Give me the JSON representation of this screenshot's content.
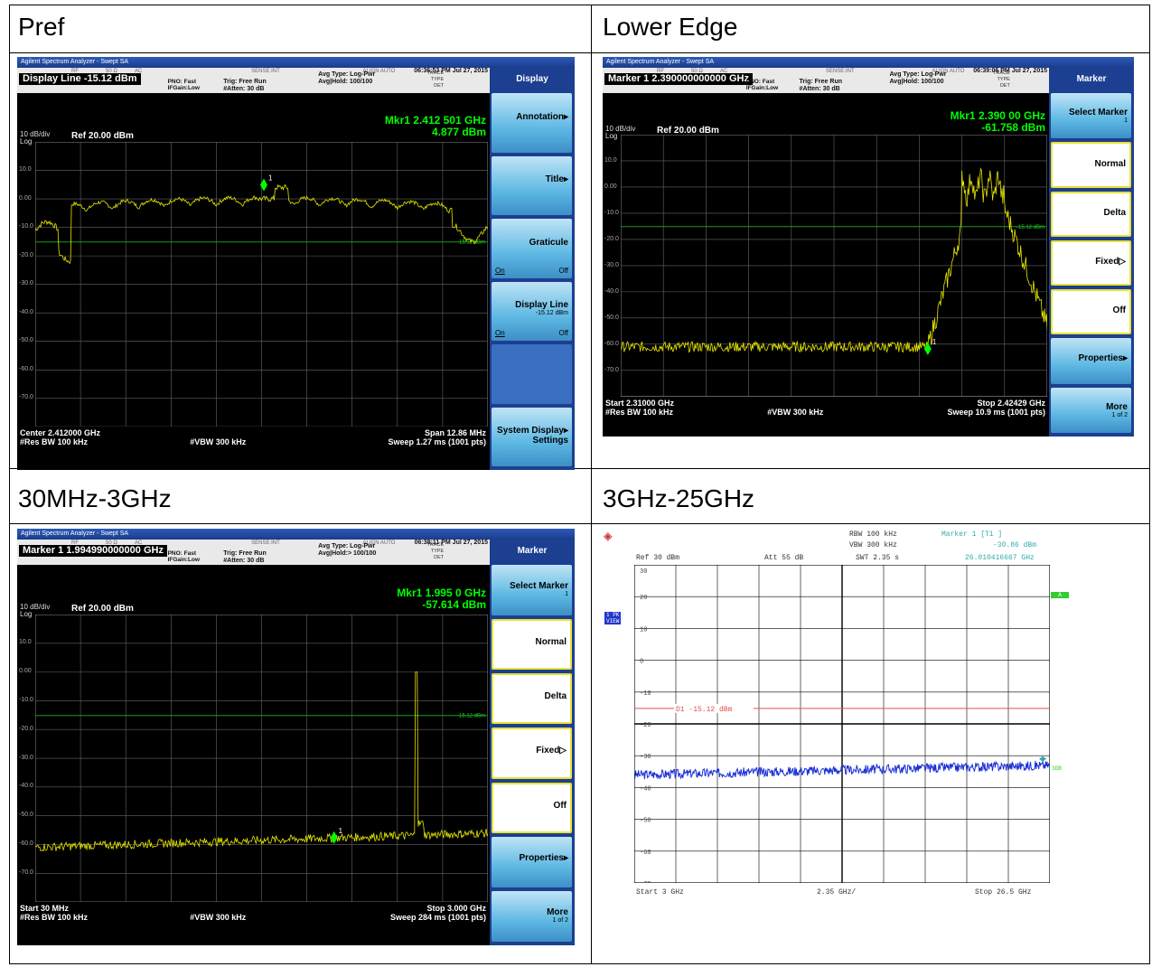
{
  "titles": {
    "tl": "Pref",
    "tr": "Lower Edge",
    "bl": "30MHz-3GHz",
    "br": "3GHz-25GHz"
  },
  "common": {
    "window_title": "Agilent Spectrum Analyzer - Swept SA",
    "rf": "RF",
    "ohm": "50 Ω",
    "ac": "AC",
    "sense": "SENSE:INT",
    "align": "ALIGN AUTO",
    "pno": "PNO: Fast",
    "ifgain": "IFGain:Low",
    "trig": "Trig: Free Run",
    "atten": "#Atten: 30 dB",
    "avg_type": "Avg Type: Log-Pwr",
    "trace": "TRACE",
    "type": "TYPE",
    "det": "DET",
    "scale": "10 dB/div",
    "log": "Log",
    "ref": "Ref 20.00 dBm",
    "rbw": "#Res BW 100 kHz",
    "vbw": "#VBW 300 kHz",
    "y_ticks": [
      "10.0",
      "0.00",
      "-10.0",
      "-20.0",
      "-30.0",
      "-40.0",
      "-50.0",
      "-60.0",
      "-70.0"
    ],
    "display_line_label": "-15.12 dBm"
  },
  "s1": {
    "time": "06:36:53 PM Jul 27, 2015",
    "title": "Display Line  -15.12 dBm",
    "avg_hold": "Avg|Hold: 100/100",
    "mkr_freq": "Mkr1 2.412 501 GHz",
    "mkr_amp": "4.877 dBm",
    "left": "Center 2.412000 GHz",
    "right1": "Span 12.86 MHz",
    "right2": "Sweep  1.27 ms (1001 pts)",
    "menu": "Display",
    "keys": [
      {
        "label": "Annotation▸"
      },
      {
        "label": "Title▸"
      },
      {
        "label": "Graticule",
        "on": "On",
        "off": "Off"
      },
      {
        "label": "Display Line",
        "sub": "-15.12 dBm",
        "on": "On",
        "off": "Off"
      },
      {
        "label": ""
      },
      {
        "label": "System Display▸ Settings"
      }
    ]
  },
  "s2": {
    "time": "06:39:06 PM Jul 27, 2015",
    "title": "Marker 1  2.390000000000 GHz",
    "avg_hold": "Avg|Hold: 100/100",
    "mkr_freq": "Mkr1 2.390 00 GHz",
    "mkr_amp": "-61.758 dBm",
    "left": "Start 2.31000 GHz",
    "right1": "Stop 2.42429 GHz",
    "right2": "Sweep  10.9 ms (1001 pts)",
    "menu": "Marker",
    "keys": [
      {
        "label": "Select Marker",
        "sub": "1"
      },
      {
        "label": "Normal"
      },
      {
        "label": "Delta"
      },
      {
        "label": "Fixed▷"
      },
      {
        "label": "Off"
      },
      {
        "label": "Properties▸"
      },
      {
        "label": "More",
        "sub": "1 of 2"
      }
    ]
  },
  "s3": {
    "time": "06:38:11 PM Jul 27, 2015",
    "title": "Marker 1  1.994990000000 GHz",
    "avg_hold": "Avg|Hold:> 100/100",
    "mkr_freq": "Mkr1 1.995 0 GHz",
    "mkr_amp": "-57.614 dBm",
    "left": "Start 30 MHz",
    "right1": "Stop 3.000 GHz",
    "right2": "Sweep  284 ms (1001 pts)",
    "menu": "Marker",
    "keys": [
      {
        "label": "Select Marker",
        "sub": "1"
      },
      {
        "label": "Normal"
      },
      {
        "label": "Delta"
      },
      {
        "label": "Fixed▷"
      },
      {
        "label": "Off"
      },
      {
        "label": "Properties▸"
      },
      {
        "label": "More",
        "sub": "1 of 2"
      }
    ]
  },
  "s4": {
    "rbw": "RBW  100 kHz",
    "vbw": "VBW  300 kHz",
    "swt": "SWT  2.35 s",
    "ref": "Ref   30 dBm",
    "att": "Att   55 dB",
    "marker": "Marker 1 [T1 ]",
    "mkr_amp": "-30.86 dBm",
    "mkr_freq": "26.010416667 GHz",
    "pk": "1 PK",
    "view": "VIEW",
    "a": "A",
    "d1": "D1  -15.12  dBm",
    "ydb": "3DB",
    "y_ticks": [
      "30",
      "20",
      "10",
      "0",
      "-10",
      "-20",
      "-30",
      "-40",
      "-50",
      "-60",
      "-70"
    ],
    "start": "Start  3 GHz",
    "div": "2.35 GHz/",
    "stop": "Stop  26.5 GHz",
    "colors": {
      "trace": "#1a2fd6",
      "line": "#e05050",
      "text": "#3aa"
    }
  }
}
